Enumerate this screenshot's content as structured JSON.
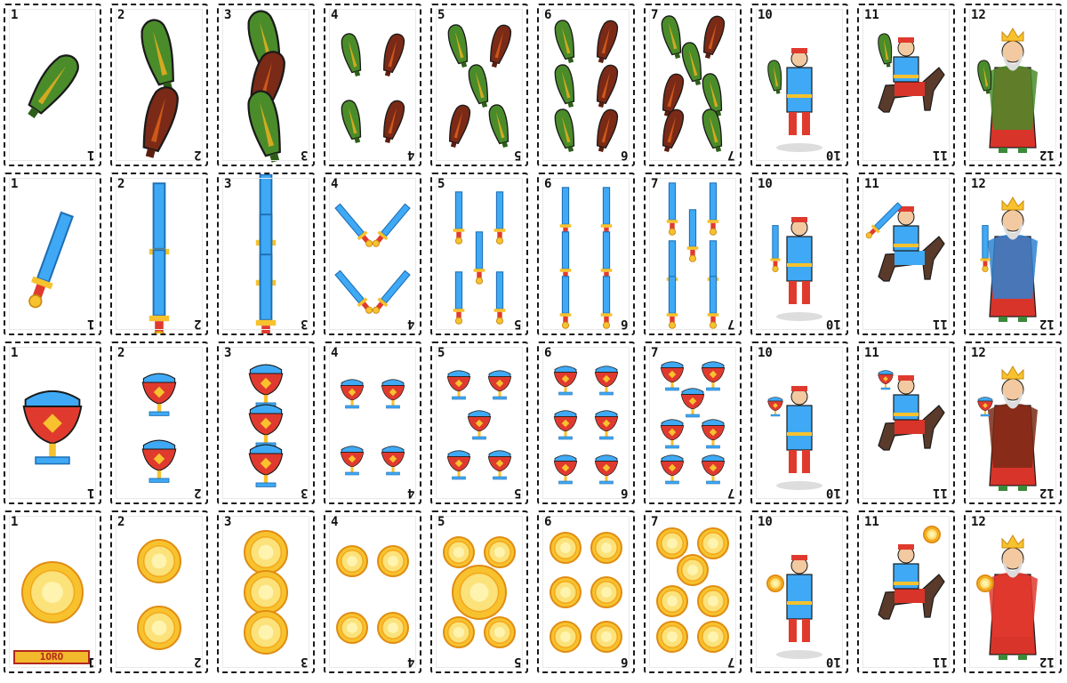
{
  "suits": [
    "bastos",
    "espadas",
    "copas",
    "oros"
  ],
  "ranks": [
    "1",
    "2",
    "3",
    "4",
    "5",
    "6",
    "7",
    "10",
    "11",
    "12"
  ],
  "ace_of_coins_label": "1ORO",
  "colors": {
    "club_green": "#4a8c2a",
    "club_brown": "#7a2a16",
    "sword_blue": "#3fa9f5",
    "cup_red": "#e03a2e",
    "coin_gold": "#f7c22e",
    "outline": "#1a1a1a"
  }
}
